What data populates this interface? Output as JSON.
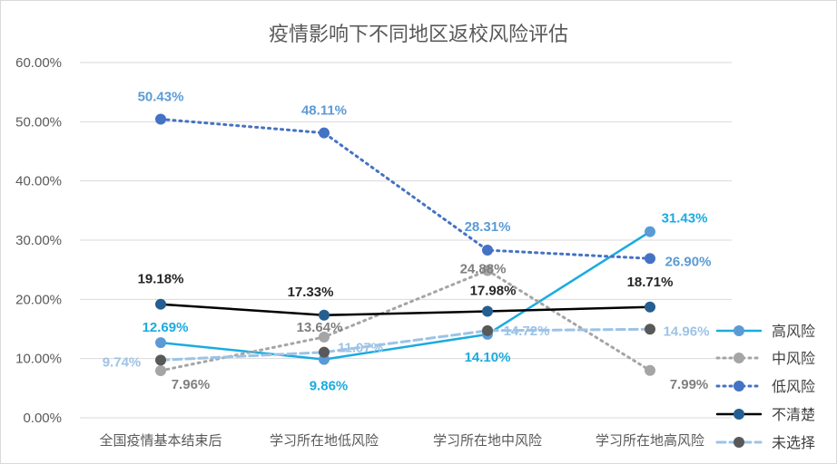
{
  "chart_data": {
    "type": "line",
    "title": "疫情影响下不同地区返校风险评估",
    "categories": [
      "全国疫情基本结束后",
      "学习所在地低风险",
      "学习所在地中风险",
      "学习所在地高风险"
    ],
    "ylim": [
      0,
      60
    ],
    "yticks": [
      "0.00%",
      "10.00%",
      "20.00%",
      "30.00%",
      "40.00%",
      "50.00%",
      "60.00%"
    ],
    "grid": true,
    "legend_position": "right",
    "series": [
      {
        "name": "高风险",
        "values": [
          12.69,
          9.86,
          14.1,
          31.43
        ],
        "labels": [
          "12.69%",
          "9.86%",
          "14.10%",
          "31.43%"
        ],
        "line_color": "#1aabe0",
        "marker_color": "#5b9bd5",
        "label_color": "#1aabe0",
        "dash": "solid"
      },
      {
        "name": "中风险",
        "values": [
          7.96,
          13.64,
          24.88,
          7.99
        ],
        "labels": [
          "7.96%",
          "13.64%",
          "24.88%",
          "7.99%"
        ],
        "line_color": "#a5a5a5",
        "marker_color": "#a5a5a5",
        "label_color": "#7f7f7f",
        "dash": "dot"
      },
      {
        "name": "低风险",
        "values": [
          50.43,
          48.11,
          28.31,
          26.9
        ],
        "labels": [
          "50.43%",
          "48.11%",
          "28.31%",
          "26.90%"
        ],
        "line_color": "#4472c4",
        "marker_color": "#4472c4",
        "label_color": "#5b9bd5",
        "dash": "dot"
      },
      {
        "name": "不清楚",
        "values": [
          19.18,
          17.33,
          17.98,
          18.71
        ],
        "labels": [
          "19.18%",
          "17.33%",
          "17.98%",
          "18.71%"
        ],
        "line_color": "#000000",
        "marker_color": "#255e91",
        "label_color": "#262626",
        "dash": "solid"
      },
      {
        "name": "未选择",
        "values": [
          9.74,
          11.07,
          14.72,
          14.96
        ],
        "labels": [
          "9.74%",
          "11.07%",
          "14.72%",
          "14.96%"
        ],
        "line_color": "#9dc3e6",
        "marker_color": "#595959",
        "label_color": "#9dc3e6",
        "dash": "dash"
      }
    ]
  }
}
